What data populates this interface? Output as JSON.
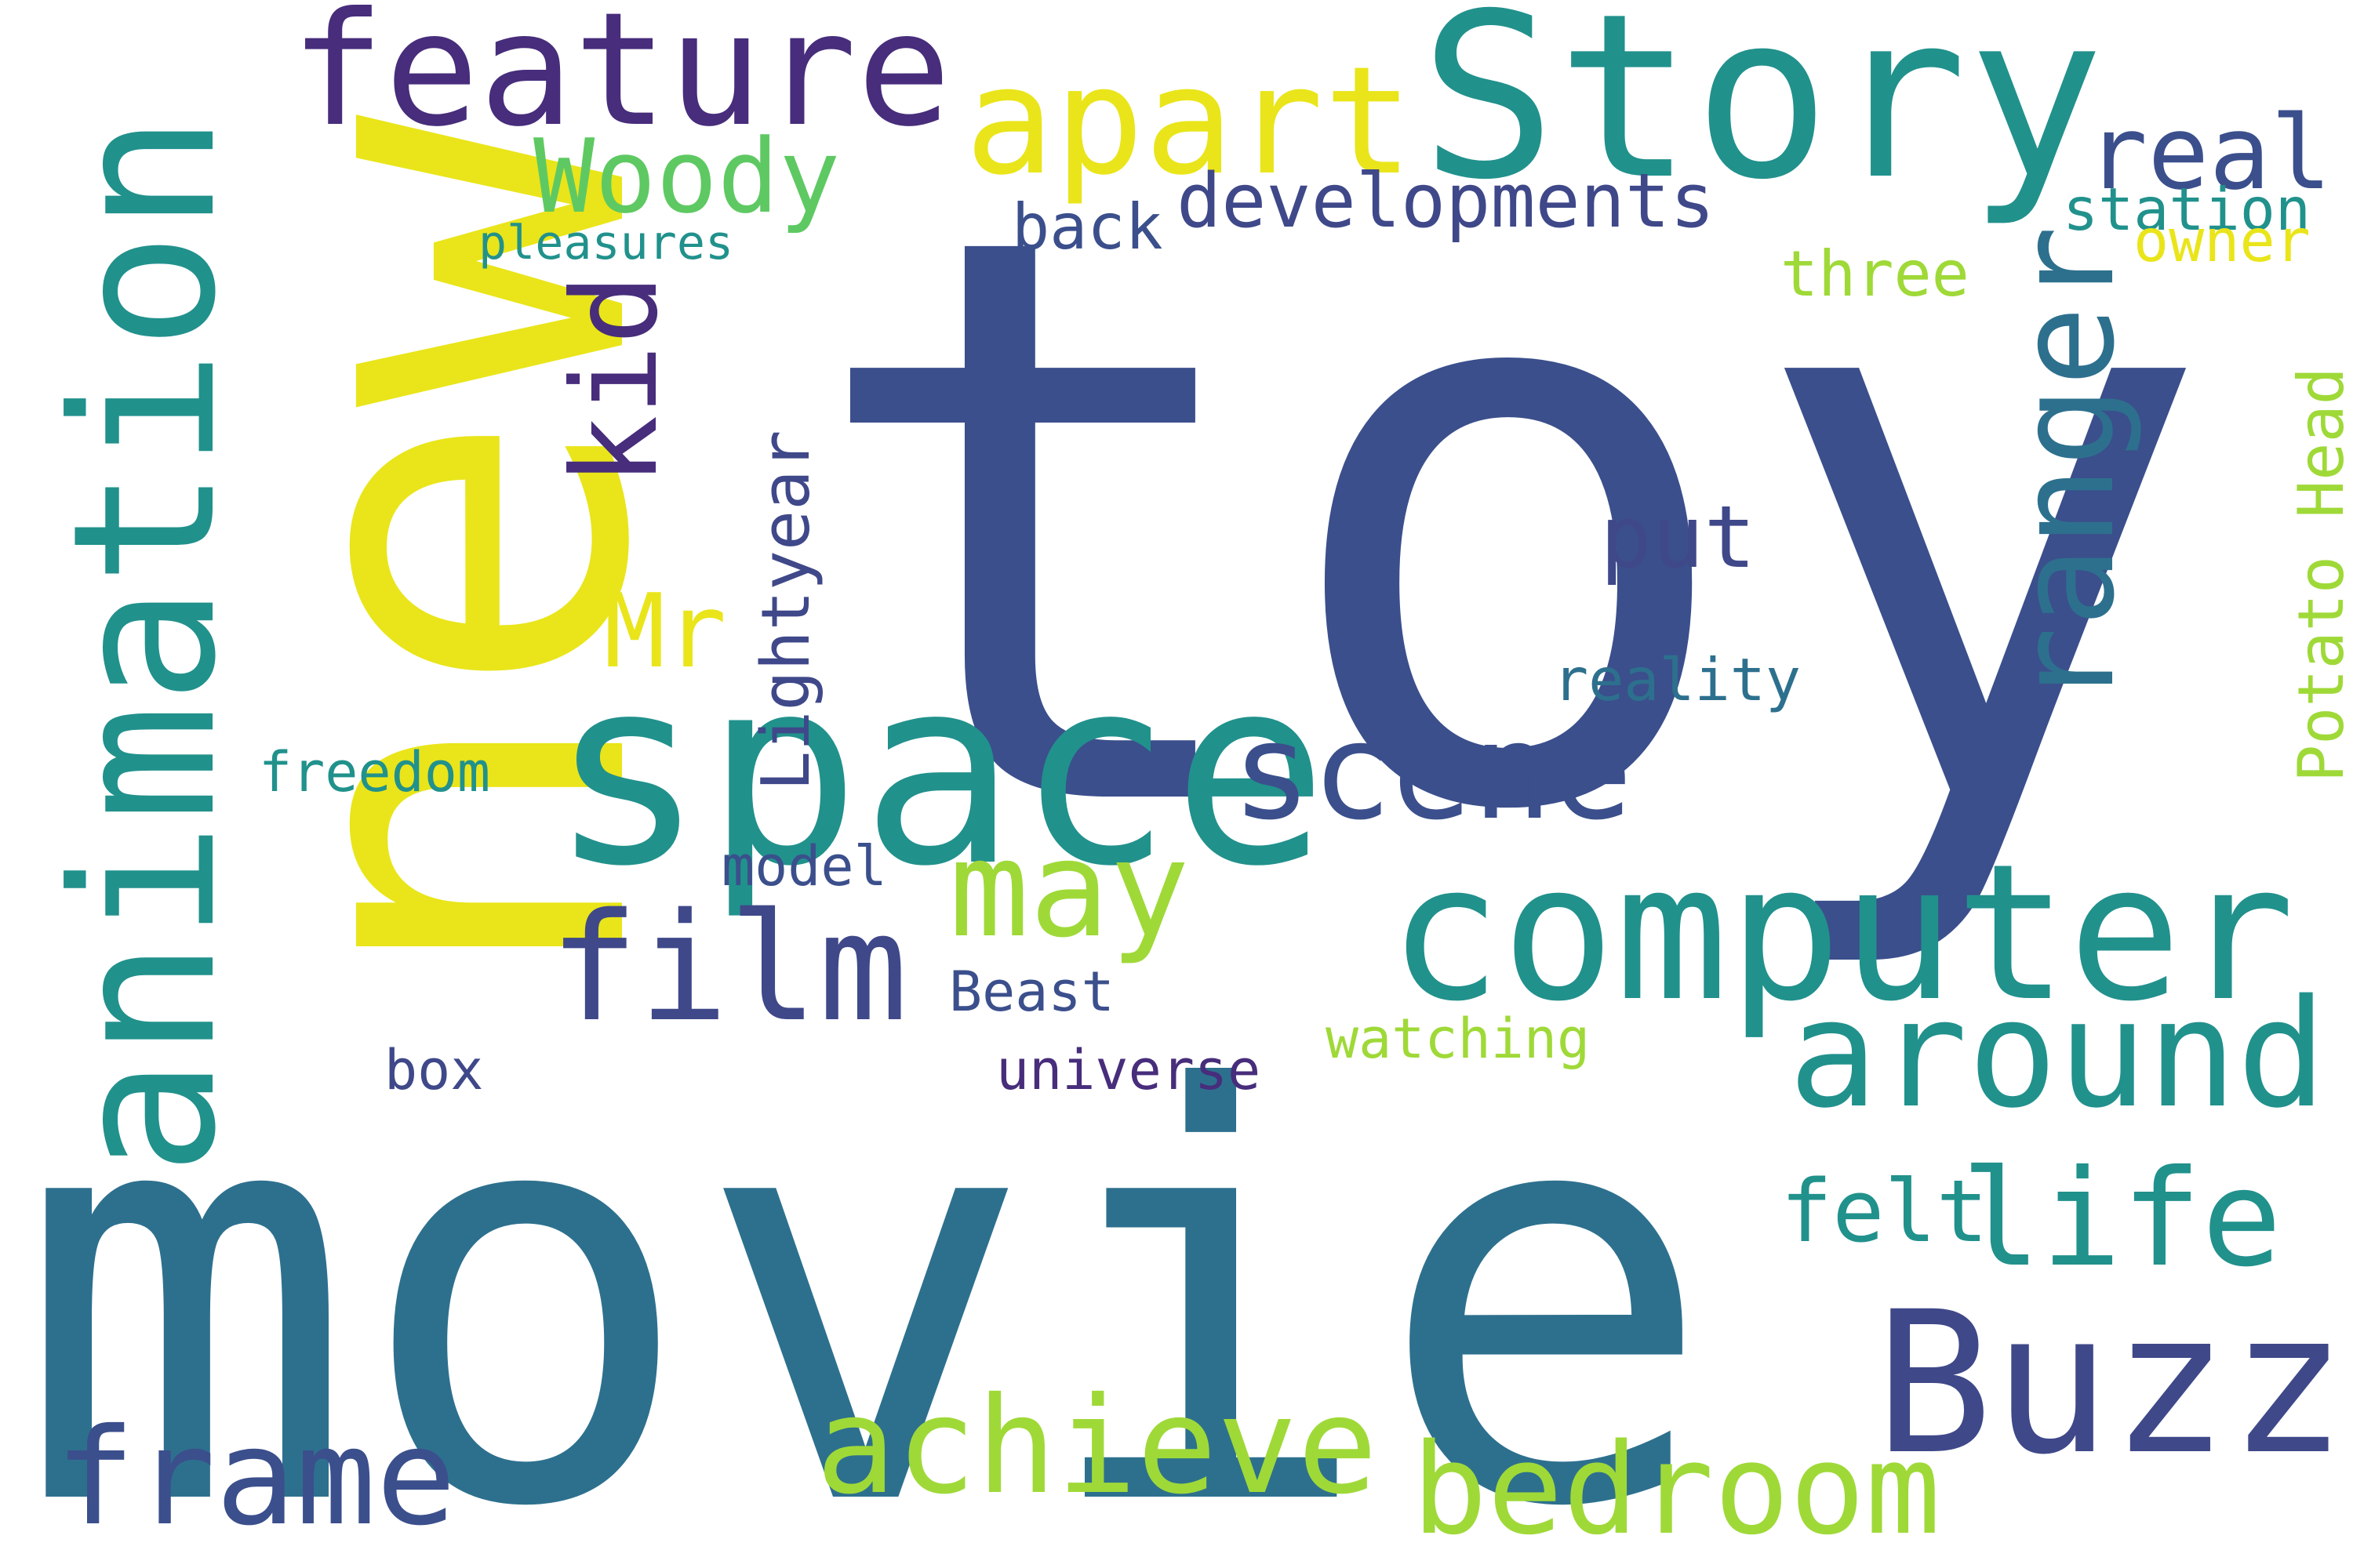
{
  "palette": {
    "navy": "#3b4f8c",
    "teal_dark": "#2d708e",
    "teal": "#21918c",
    "green": "#27ad81",
    "green_light": "#5ec962",
    "lime": "#9fd938",
    "yellow": "#e9e51a",
    "purple": "#472d7b",
    "indigo": "#3f4889"
  },
  "words": [
    "toy",
    "movie",
    "new",
    "Story",
    "space",
    "computer",
    "animation",
    "Buzz",
    "feature",
    "apart",
    "ranger",
    "around",
    "film",
    "achieve",
    "bedroom",
    "frame",
    "may",
    "life",
    "scene",
    "Woody",
    "kid",
    "real",
    "developments",
    "Mr",
    "station",
    "Potato Head",
    "put",
    "back",
    "felt",
    "Lightyear",
    "freedom",
    "pleasures",
    "three",
    "owner",
    "reality",
    "universe",
    "watching",
    "model",
    "Beast",
    "box"
  ]
}
